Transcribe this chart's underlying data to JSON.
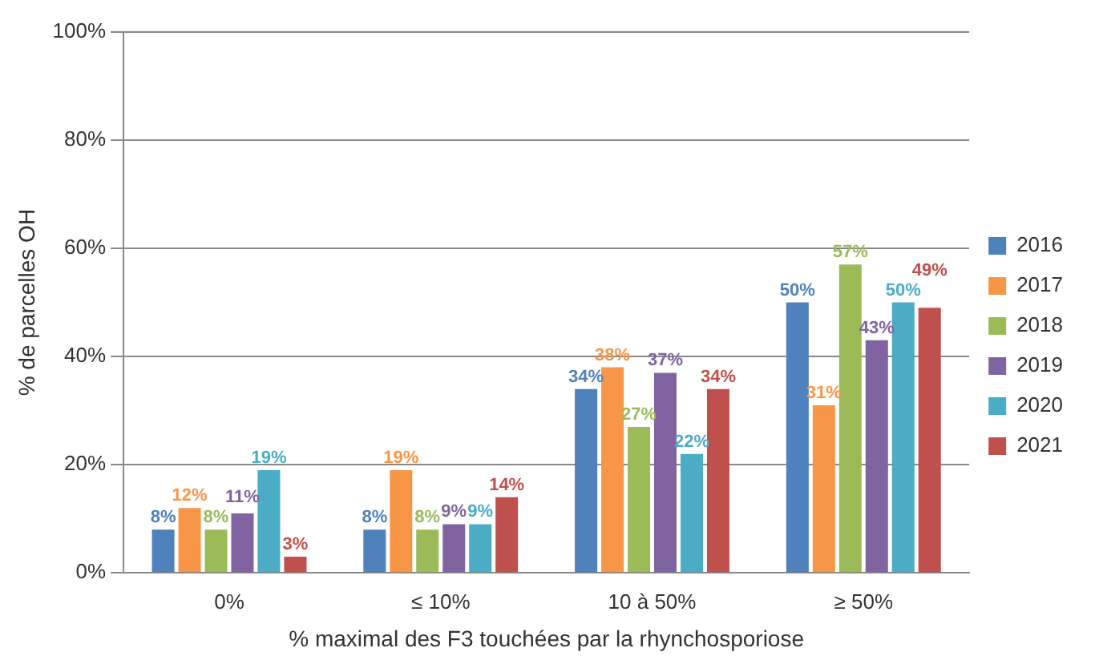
{
  "chart_data": {
    "type": "bar",
    "xlabel": "% maximal des F3 touchées par la rhynchosporiose",
    "ylabel": "% de parcelles OH",
    "categories": [
      "0%",
      "≤ 10%",
      "10 à 50%",
      "≥ 50%"
    ],
    "series": [
      {
        "name": "2016",
        "color": "#4f81bd",
        "values": [
          8,
          8,
          34,
          50
        ],
        "value_labels": [
          "8%",
          "8%",
          "34%",
          "50%"
        ]
      },
      {
        "name": "2017",
        "color": "#f79646",
        "values": [
          12,
          19,
          38,
          31
        ],
        "value_labels": [
          "12%",
          "19%",
          "38%",
          "31%"
        ]
      },
      {
        "name": "2018",
        "color": "#9bbb59",
        "values": [
          8,
          8,
          27,
          57
        ],
        "value_labels": [
          "8%",
          "8%",
          "27%",
          "57%"
        ]
      },
      {
        "name": "2019",
        "color": "#8064a2",
        "values": [
          11,
          9,
          37,
          43
        ],
        "value_labels": [
          "11%",
          "9%",
          "37%",
          "43%"
        ]
      },
      {
        "name": "2020",
        "color": "#4bacc6",
        "values": [
          19,
          9,
          22,
          50
        ],
        "value_labels": [
          "19%",
          "9%",
          "22%",
          "50%"
        ]
      },
      {
        "name": "2021",
        "color": "#c0504d",
        "values": [
          3,
          14,
          34,
          49
        ],
        "value_labels": [
          "3%",
          "14%",
          "34%",
          "49%"
        ]
      }
    ],
    "ylim": [
      0,
      100
    ],
    "yticks": [
      {
        "value": 0,
        "label": "0%"
      },
      {
        "value": 20,
        "label": "20%"
      },
      {
        "value": 40,
        "label": "40%"
      },
      {
        "value": 60,
        "label": "60%"
      },
      {
        "value": 80,
        "label": "80%"
      },
      {
        "value": 100,
        "label": "100%"
      }
    ],
    "grid": "y",
    "legend": "right"
  }
}
